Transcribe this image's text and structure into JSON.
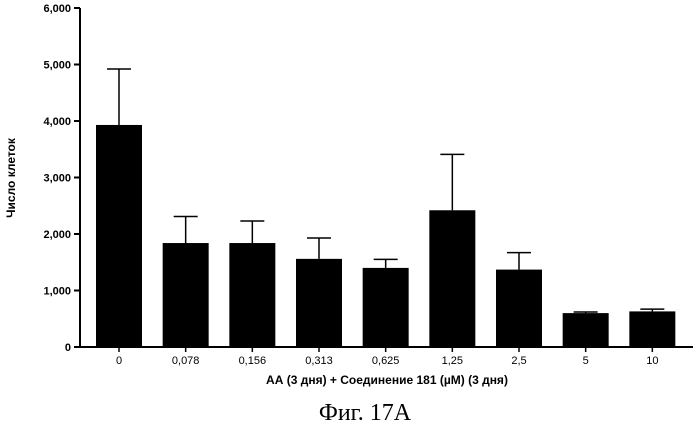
{
  "chart_data": {
    "type": "bar",
    "categories": [
      "0",
      "0,078",
      "0,156",
      "0,313",
      "0,625",
      "1,25",
      "2,5",
      "5",
      "10"
    ],
    "values": [
      3930,
      1840,
      1840,
      1560,
      1400,
      2420,
      1370,
      600,
      630
    ],
    "errors": [
      990,
      470,
      390,
      370,
      150,
      990,
      300,
      20,
      40
    ],
    "yticks": [
      "0",
      "1,000",
      "2,000",
      "3,000",
      "4,000",
      "5,000",
      "6,000"
    ],
    "ylim": [
      0,
      6000
    ],
    "ylabel": "Число клеток",
    "xlabel": "АА (3 дня)  + Соединение 181 (µM) (3 дня)",
    "bar_color": "#000000"
  },
  "caption": "Фиг. 17А"
}
